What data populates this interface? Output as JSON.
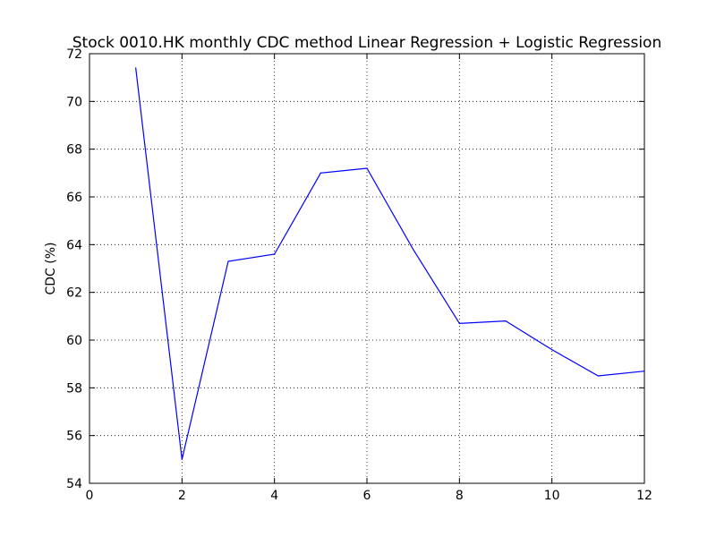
{
  "chart_data": {
    "type": "line",
    "title": "Stock 0010.HK monthly CDC method Linear Regression + Logistic Regression",
    "xlabel": "",
    "ylabel": "CDC (%)",
    "xlim": [
      0,
      12
    ],
    "ylim": [
      54,
      72
    ],
    "xticks": [
      0,
      2,
      4,
      6,
      8,
      10,
      12
    ],
    "yticks": [
      54,
      56,
      58,
      60,
      62,
      64,
      66,
      68,
      70,
      72
    ],
    "grid": true,
    "series": [
      {
        "color": "#0000ff",
        "x": [
          1,
          2,
          3,
          4,
          5,
          6,
          7,
          8,
          9,
          10,
          11,
          12
        ],
        "y": [
          71.4,
          55.0,
          63.3,
          63.6,
          67.0,
          67.2,
          63.8,
          60.7,
          60.8,
          59.6,
          58.5,
          58.7
        ]
      }
    ]
  }
}
